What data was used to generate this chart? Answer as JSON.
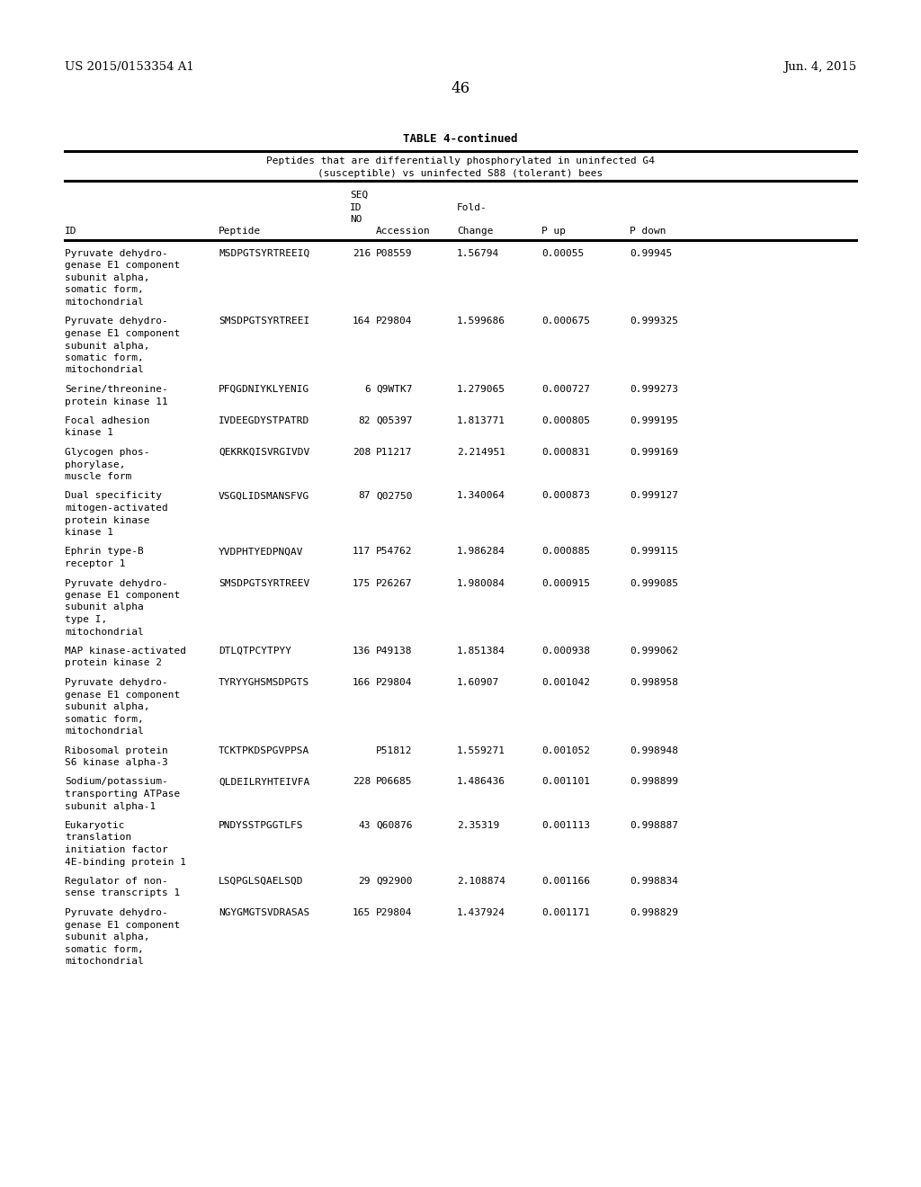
{
  "header_left": "US 2015/0153354 A1",
  "header_right": "Jun. 4, 2015",
  "page_number": "46",
  "table_title": "TABLE 4-continued",
  "table_subtitle1": "Peptides that are differentially phosphorylated in uninfected G4",
  "table_subtitle2": "(susceptible) vs uninfected S88 (tolerant) bees",
  "rows": [
    {
      "id": [
        "Pyruvate dehydro-",
        "genase E1 component",
        "subunit alpha,",
        "somatic form,",
        "mitochondrial"
      ],
      "peptide": "MSDPGTSYRTREEIQ",
      "seq": "216",
      "accession": "P08559",
      "fold": "1.56794",
      "pup": "0.00055",
      "pdown": "0.99945"
    },
    {
      "id": [
        "Pyruvate dehydro-",
        "genase E1 component",
        "subunit alpha,",
        "somatic form,",
        "mitochondrial"
      ],
      "peptide": "SMSDPGTSYRTREEI",
      "seq": "164",
      "accession": "P29804",
      "fold": "1.599686",
      "pup": "0.000675",
      "pdown": "0.999325"
    },
    {
      "id": [
        "Serine/threonine-",
        "protein kinase 11"
      ],
      "peptide": "PFQGDNIYKLYENIG",
      "seq": "6",
      "accession": "Q9WTK7",
      "fold": "1.279065",
      "pup": "0.000727",
      "pdown": "0.999273"
    },
    {
      "id": [
        "Focal adhesion",
        "kinase 1"
      ],
      "peptide": "IVDEEGDYSTPATRD",
      "seq": "82",
      "accession": "Q05397",
      "fold": "1.813771",
      "pup": "0.000805",
      "pdown": "0.999195"
    },
    {
      "id": [
        "Glycogen phos-",
        "phorylase,",
        "muscle form"
      ],
      "peptide": "QEKRKQISVRGIVDV",
      "seq": "208",
      "accession": "P11217",
      "fold": "2.214951",
      "pup": "0.000831",
      "pdown": "0.999169"
    },
    {
      "id": [
        "Dual specificity",
        "mitogen-activated",
        "protein kinase",
        "kinase 1"
      ],
      "peptide": "VSGQLIDSMANSFVG",
      "seq": "87",
      "accession": "Q02750",
      "fold": "1.340064",
      "pup": "0.000873",
      "pdown": "0.999127"
    },
    {
      "id": [
        "Ephrin type-B",
        "receptor 1"
      ],
      "peptide": "YVDPHTYEDPNQAV",
      "seq": "117",
      "accession": "P54762",
      "fold": "1.986284",
      "pup": "0.000885",
      "pdown": "0.999115"
    },
    {
      "id": [
        "Pyruvate dehydro-",
        "genase E1 component",
        "subunit alpha",
        "type I,",
        "mitochondrial"
      ],
      "peptide": "SMSDPGTSYRTREEV",
      "seq": "175",
      "accession": "P26267",
      "fold": "1.980084",
      "pup": "0.000915",
      "pdown": "0.999085"
    },
    {
      "id": [
        "MAP kinase-activated",
        "protein kinase 2"
      ],
      "peptide": "DTLQTPCYTPYY",
      "seq": "136",
      "accession": "P49138",
      "fold": "1.851384",
      "pup": "0.000938",
      "pdown": "0.999062"
    },
    {
      "id": [
        "Pyruvate dehydro-",
        "genase E1 component",
        "subunit alpha,",
        "somatic form,",
        "mitochondrial"
      ],
      "peptide": "TYRYYGHSMSDPGTS",
      "seq": "166",
      "accession": "P29804",
      "fold": "1.60907",
      "pup": "0.001042",
      "pdown": "0.998958"
    },
    {
      "id": [
        "Ribosomal protein",
        "S6 kinase alpha-3"
      ],
      "peptide": "TCKTPKDSPGVPPSA",
      "seq": "",
      "accession": "P51812",
      "fold": "1.559271",
      "pup": "0.001052",
      "pdown": "0.998948"
    },
    {
      "id": [
        "Sodium/potassium-",
        "transporting ATPase",
        "subunit alpha-1"
      ],
      "peptide": "QLDEILRYHTEIVFA",
      "seq": "228",
      "accession": "P06685",
      "fold": "1.486436",
      "pup": "0.001101",
      "pdown": "0.998899"
    },
    {
      "id": [
        "Eukaryotic",
        "translation",
        "initiation factor",
        "4E-binding protein 1"
      ],
      "peptide": "PNDYSSTPGGTLFS",
      "seq": "43",
      "accession": "Q60876",
      "fold": "2.35319",
      "pup": "0.001113",
      "pdown": "0.998887"
    },
    {
      "id": [
        "Regulator of non-",
        "sense transcripts 1"
      ],
      "peptide": "LSQPGLSQAELSQD",
      "seq": "29",
      "accession": "Q92900",
      "fold": "2.108874",
      "pup": "0.001166",
      "pdown": "0.998834"
    },
    {
      "id": [
        "Pyruvate dehydro-",
        "genase E1 component",
        "subunit alpha,",
        "somatic form,",
        "mitochondrial"
      ],
      "peptide": "NGYGMGTSVDRASAS",
      "seq": "165",
      "accession": "P29804",
      "fold": "1.437924",
      "pup": "0.001171",
      "pdown": "0.998829"
    }
  ]
}
